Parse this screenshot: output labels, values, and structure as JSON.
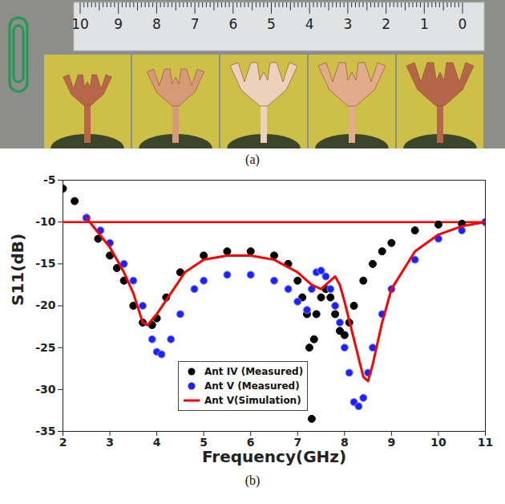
{
  "figure": {
    "photo_caption": "(a)",
    "chart_caption": "(b)",
    "ruler_labels": [
      10,
      9,
      8,
      7,
      6,
      5,
      4,
      3,
      2,
      1,
      0
    ]
  },
  "chart_data": {
    "type": "line",
    "x_label": "Frequency(GHz)",
    "y_label": "S11(dB)",
    "xlim": [
      2,
      11
    ],
    "xticks": [
      2,
      3,
      4,
      5,
      6,
      7,
      8,
      9,
      10,
      11
    ],
    "ylim": [
      -35,
      -5
    ],
    "yticks": [
      -35,
      -30,
      -25,
      -20,
      -15,
      -10,
      -5
    ],
    "grid": false,
    "legend": "lower center",
    "threshold": -10,
    "series": [
      {
        "name": "Ant IV (Measured)",
        "type": "scatter",
        "marker": "circle",
        "color": "#000000",
        "x": [
          2.0,
          2.25,
          2.5,
          2.75,
          3.0,
          3.15,
          3.3,
          3.5,
          3.7,
          3.9,
          4.0,
          4.2,
          4.5,
          5.0,
          5.5,
          6.0,
          6.5,
          6.8,
          7.0,
          7.1,
          7.2,
          7.25,
          7.3,
          7.35,
          7.4,
          7.5,
          7.6,
          7.7,
          7.8,
          7.9,
          8.0,
          8.1,
          8.2,
          8.4,
          8.6,
          8.8,
          9.0,
          9.5,
          10.0,
          10.5,
          11.0
        ],
        "values": [
          -6,
          -7.5,
          -9.5,
          -12,
          -14,
          -15.5,
          -17,
          -20,
          -22,
          -22.3,
          -21.5,
          -19,
          -16,
          -14,
          -13.5,
          -13.5,
          -14,
          -15,
          -17,
          -19,
          -21,
          -25,
          -33.5,
          -24,
          -21,
          -19,
          -18,
          -19,
          -21,
          -23,
          -23.5,
          -22,
          -20,
          -17,
          -15,
          -13.5,
          -12.5,
          -11,
          -10.3,
          -10.2,
          -10
        ]
      },
      {
        "name": "Ant V (Measured)",
        "type": "scatter",
        "marker": "circle",
        "color": "#1f1fff",
        "x": [
          2.5,
          2.8,
          3.0,
          3.3,
          3.5,
          3.7,
          3.9,
          4.0,
          4.1,
          4.3,
          4.5,
          4.8,
          5.0,
          5.5,
          6.0,
          6.5,
          6.8,
          7.0,
          7.2,
          7.3,
          7.4,
          7.5,
          7.6,
          7.7,
          7.8,
          7.9,
          8.0,
          8.1,
          8.2,
          8.3,
          8.4,
          8.5,
          8.6,
          8.8,
          9.0,
          9.5,
          10.0,
          10.5,
          11.0
        ],
        "values": [
          -9.5,
          -11,
          -12.5,
          -15,
          -17,
          -20,
          -24,
          -25.5,
          -25.8,
          -24,
          -21,
          -18,
          -17,
          -16.3,
          -16.3,
          -17,
          -18,
          -19.5,
          -20.5,
          -18,
          -16,
          -15.8,
          -16.5,
          -18,
          -20,
          -22,
          -25,
          -28,
          -31.5,
          -32,
          -31,
          -28,
          -25,
          -21,
          -18,
          -14.5,
          -12,
          -11,
          -10
        ]
      },
      {
        "name": "Ant V(Simulation)",
        "type": "line",
        "line_style": "solid",
        "color": "#ff0000",
        "x": [
          2.5,
          3.0,
          3.3,
          3.5,
          3.7,
          3.8,
          4.0,
          4.3,
          4.6,
          5.0,
          5.5,
          6.0,
          6.5,
          7.0,
          7.3,
          7.5,
          7.7,
          7.8,
          7.9,
          8.0,
          8.2,
          8.4,
          8.5,
          8.6,
          8.8,
          9.0,
          9.5,
          10.0,
          10.5,
          11.0
        ],
        "values": [
          -9.5,
          -13,
          -16,
          -18.5,
          -22,
          -22.3,
          -21,
          -18.5,
          -16,
          -14.5,
          -14,
          -14,
          -14.5,
          -16,
          -17.5,
          -18,
          -17,
          -16.5,
          -17.5,
          -19.5,
          -24,
          -28.5,
          -29,
          -27,
          -22,
          -18,
          -13.5,
          -11.5,
          -10.5,
          -10
        ]
      }
    ]
  }
}
